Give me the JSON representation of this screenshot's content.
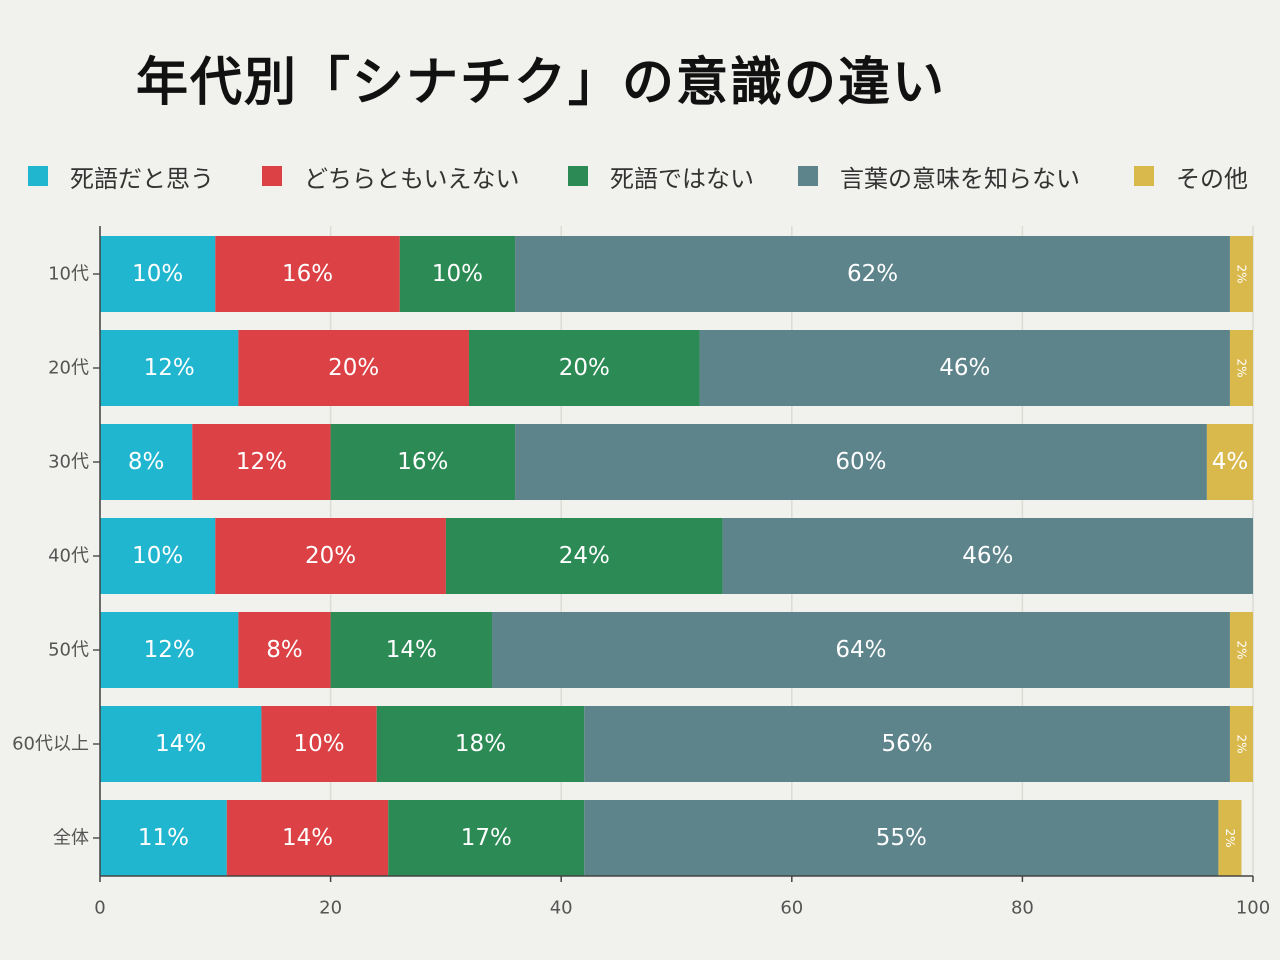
{
  "title": "年代別「シナチク」の意識の違い",
  "legend": [
    {
      "label": "死語だと思う",
      "color": "#21b6cf"
    },
    {
      "label": "どちらともいえない",
      "color": "#db4145"
    },
    {
      "label": "死語ではない",
      "color": "#2c8a55"
    },
    {
      "label": "言葉の意味を知らない",
      "color": "#5d838b"
    },
    {
      "label": "その他",
      "color": "#d9b84c"
    }
  ],
  "chart_data": {
    "type": "bar",
    "orientation": "horizontal",
    "stacked": true,
    "title": "年代別「シナチク」の意識の違い",
    "categories": [
      "10代",
      "20代",
      "30代",
      "40代",
      "50代",
      "60代以上",
      "全体"
    ],
    "series": [
      {
        "name": "死語だと思う",
        "color": "#21b6cf",
        "values": [
          10,
          12,
          8,
          10,
          12,
          14,
          11
        ]
      },
      {
        "name": "どちらともいえない",
        "color": "#db4145",
        "values": [
          16,
          20,
          12,
          20,
          8,
          10,
          14
        ]
      },
      {
        "name": "死語ではない",
        "color": "#2c8a55",
        "values": [
          10,
          20,
          16,
          24,
          14,
          18,
          17
        ]
      },
      {
        "name": "言葉の意味を知らない",
        "color": "#5d838b",
        "values": [
          62,
          46,
          60,
          46,
          64,
          56,
          55
        ]
      },
      {
        "name": "その他",
        "color": "#d9b84c",
        "values": [
          2,
          2,
          4,
          0,
          2,
          2,
          2
        ]
      }
    ],
    "xlim": [
      0,
      100
    ],
    "xticks": [
      0,
      20,
      40,
      60,
      80,
      100
    ],
    "grid": true,
    "legend_position": "top",
    "value_label_suffix": "%"
  }
}
